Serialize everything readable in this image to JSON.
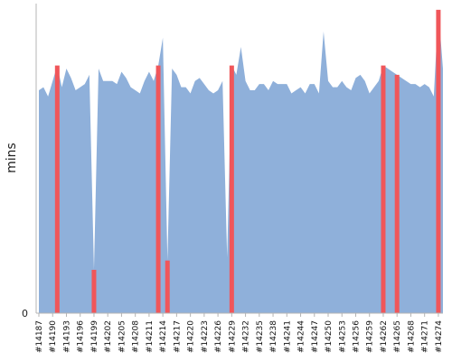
{
  "chart_data": {
    "type": "area",
    "ylabel": "mins",
    "y_tick_labels": [
      "0"
    ],
    "ylim": [
      0,
      100
    ],
    "grid": false,
    "colors": {
      "base": "#8fb0da",
      "highlight": "#f0565a",
      "axis": "#b4b4b4"
    },
    "x_tick_labels": [
      "#14187",
      "#14190",
      "#14193",
      "#14196",
      "#14199",
      "#14202",
      "#14205",
      "#14208",
      "#14211",
      "#14214",
      "#14217",
      "#14220",
      "#14223",
      "#14226",
      "#14229",
      "#14232",
      "#14235",
      "#14238",
      "#14241",
      "#14244",
      "#14247",
      "#14250",
      "#14253",
      "#14256",
      "#14259",
      "#14262",
      "#14265",
      "#14268",
      "#14271",
      "#14274"
    ],
    "x_tick_values": [
      14187,
      14190,
      14193,
      14196,
      14199,
      14202,
      14205,
      14208,
      14211,
      14214,
      14217,
      14220,
      14223,
      14226,
      14229,
      14232,
      14235,
      14238,
      14241,
      14244,
      14247,
      14250,
      14253,
      14256,
      14259,
      14262,
      14265,
      14268,
      14271,
      14274
    ],
    "x": [
      14187,
      14188,
      14189,
      14190,
      14191,
      14192,
      14193,
      14194,
      14195,
      14196,
      14197,
      14198,
      14199,
      14200,
      14201,
      14202,
      14203,
      14204,
      14205,
      14206,
      14207,
      14208,
      14209,
      14210,
      14211,
      14212,
      14213,
      14214,
      14215,
      14216,
      14217,
      14218,
      14219,
      14220,
      14221,
      14222,
      14223,
      14224,
      14225,
      14226,
      14227,
      14228,
      14229,
      14230,
      14231,
      14232,
      14233,
      14234,
      14235,
      14236,
      14237,
      14238,
      14239,
      14240,
      14241,
      14242,
      14243,
      14244,
      14245,
      14246,
      14247,
      14248,
      14249,
      14250,
      14251,
      14252,
      14253,
      14254,
      14255,
      14256,
      14257,
      14258,
      14259,
      14260,
      14261,
      14262,
      14263,
      14264,
      14265,
      14266,
      14267,
      14268,
      14269,
      14270,
      14271,
      14272,
      14273,
      14274,
      14275
    ],
    "values": [
      72,
      73,
      70,
      75,
      80,
      73,
      79,
      76,
      72,
      73,
      74,
      77,
      14,
      79,
      75,
      75,
      75,
      74,
      78,
      76,
      73,
      72,
      71,
      75,
      78,
      75,
      80,
      89,
      17,
      79,
      77,
      73,
      73,
      71,
      75,
      76,
      74,
      72,
      71,
      72,
      75,
      18,
      80,
      77,
      86,
      75,
      72,
      72,
      74,
      74,
      72,
      75,
      74,
      74,
      74,
      71,
      72,
      73,
      71,
      74,
      74,
      71,
      91,
      75,
      73,
      73,
      75,
      73,
      72,
      76,
      77,
      75,
      71,
      73,
      75,
      80,
      79,
      78,
      77,
      76,
      75,
      74,
      74,
      73,
      74,
      73,
      70,
      98,
      79
    ],
    "highlighted_x": [
      14191,
      14199,
      14213,
      14215,
      14229,
      14262,
      14265,
      14274
    ]
  }
}
